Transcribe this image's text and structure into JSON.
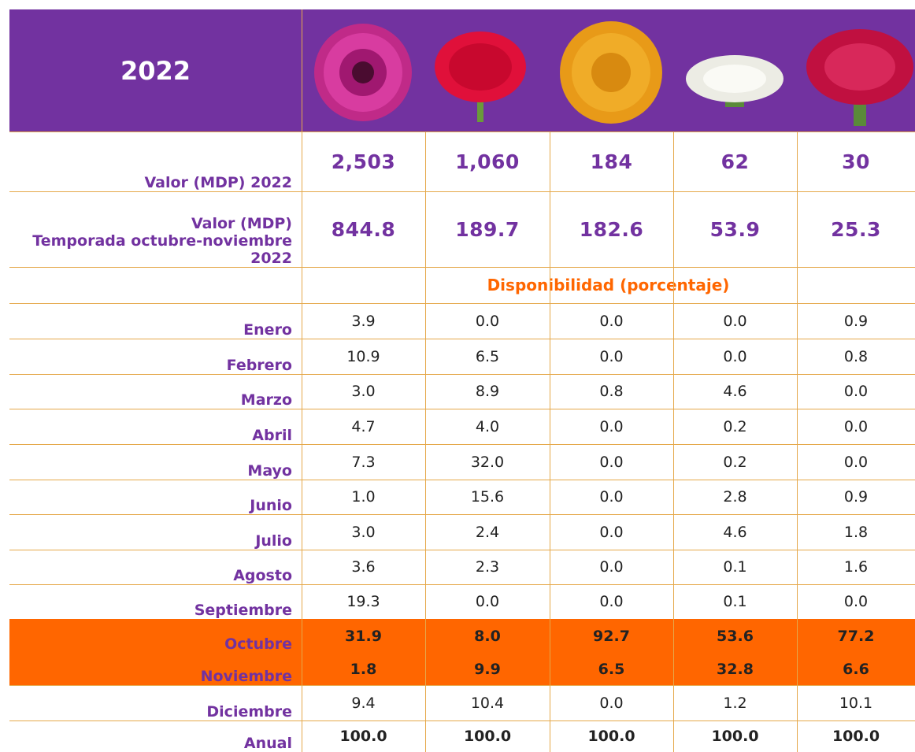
{
  "header": {
    "title": "2022"
  },
  "table": {
    "value_rows": [
      {
        "label": [
          "Valor (MDP) 2022"
        ],
        "values": [
          "2,503",
          "1,060",
          "184",
          "62",
          "30"
        ]
      },
      {
        "label": [
          "Valor (MDP)",
          "Temporada octubre-noviembre",
          "2022"
        ],
        "values": [
          "844.8",
          "189.7",
          "182.6",
          "53.9",
          "25.3"
        ]
      }
    ],
    "availability_title": "Disponibilidad (porcentaje)",
    "month_rows": [
      {
        "label": "Enero",
        "values": [
          "3.9",
          "0.0",
          "0.0",
          "0.0",
          "0.9"
        ]
      },
      {
        "label": "Febrero",
        "values": [
          "10.9",
          "6.5",
          "0.0",
          "0.0",
          "0.8"
        ]
      },
      {
        "label": "Marzo",
        "values": [
          "3.0",
          "8.9",
          "0.8",
          "4.6",
          "0.0"
        ]
      },
      {
        "label": "Abril",
        "values": [
          "4.7",
          "4.0",
          "0.0",
          "0.2",
          "0.0"
        ]
      },
      {
        "label": "Mayo",
        "values": [
          "7.3",
          "32.0",
          "0.0",
          "0.2",
          "0.0"
        ]
      },
      {
        "label": "Junio",
        "values": [
          "1.0",
          "15.6",
          "0.0",
          "2.8",
          "0.9"
        ]
      },
      {
        "label": "Julio",
        "values": [
          "3.0",
          "2.4",
          "0.0",
          "4.6",
          "1.8"
        ]
      },
      {
        "label": "Agosto",
        "values": [
          "3.6",
          "2.3",
          "0.0",
          "0.1",
          "1.6"
        ]
      },
      {
        "label": "Septiembre",
        "values": [
          "19.3",
          "0.0",
          "0.0",
          "0.1",
          "0.0"
        ]
      },
      {
        "label": "Octubre",
        "values": [
          "31.9",
          "8.0",
          "92.7",
          "53.6",
          "77.2"
        ]
      },
      {
        "label": "Noviembre",
        "values": [
          "1.8",
          "9.9",
          "6.5",
          "32.8",
          "6.6"
        ]
      },
      {
        "label": "Diciembre",
        "values": [
          "9.4",
          "10.4",
          "0.0",
          "1.2",
          "10.1"
        ]
      },
      {
        "label": "Anual",
        "values": [
          "100.0",
          "100.0",
          "100.0",
          "100.0",
          "100.0"
        ]
      }
    ]
  }
}
